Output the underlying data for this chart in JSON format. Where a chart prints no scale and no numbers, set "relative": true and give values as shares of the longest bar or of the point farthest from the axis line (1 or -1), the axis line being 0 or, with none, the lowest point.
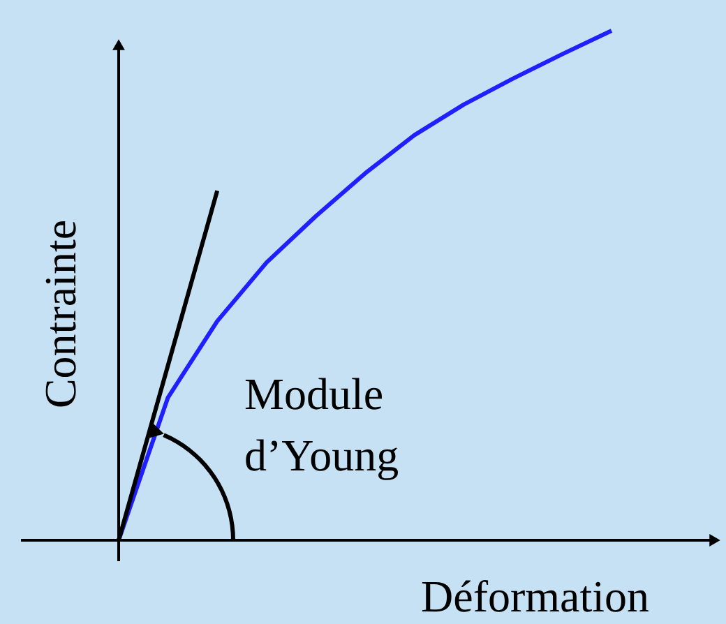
{
  "chart_data": {
    "type": "line",
    "relative": true,
    "xlabel": "Déformation",
    "ylabel": "Contrainte",
    "annotations": [
      "Module\nd’Young"
    ],
    "marker": "none",
    "line_style": "solid",
    "categories": [
      null,
      null,
      null,
      null,
      null,
      null,
      null,
      null,
      null,
      null,
      null
    ],
    "series": [
      {
        "color": "#1f1fff",
        "values": [
          0,
          0.28,
          0.43,
          0.545,
          0.636,
          0.72,
          0.795,
          0.855,
          0.906,
          0.954,
          1
        ]
      },
      {
        "color": "#000000",
        "values": [
          0,
          0.343,
          0.686,
          null,
          null,
          null,
          null,
          null,
          null,
          null,
          null
        ]
      }
    ]
  }
}
